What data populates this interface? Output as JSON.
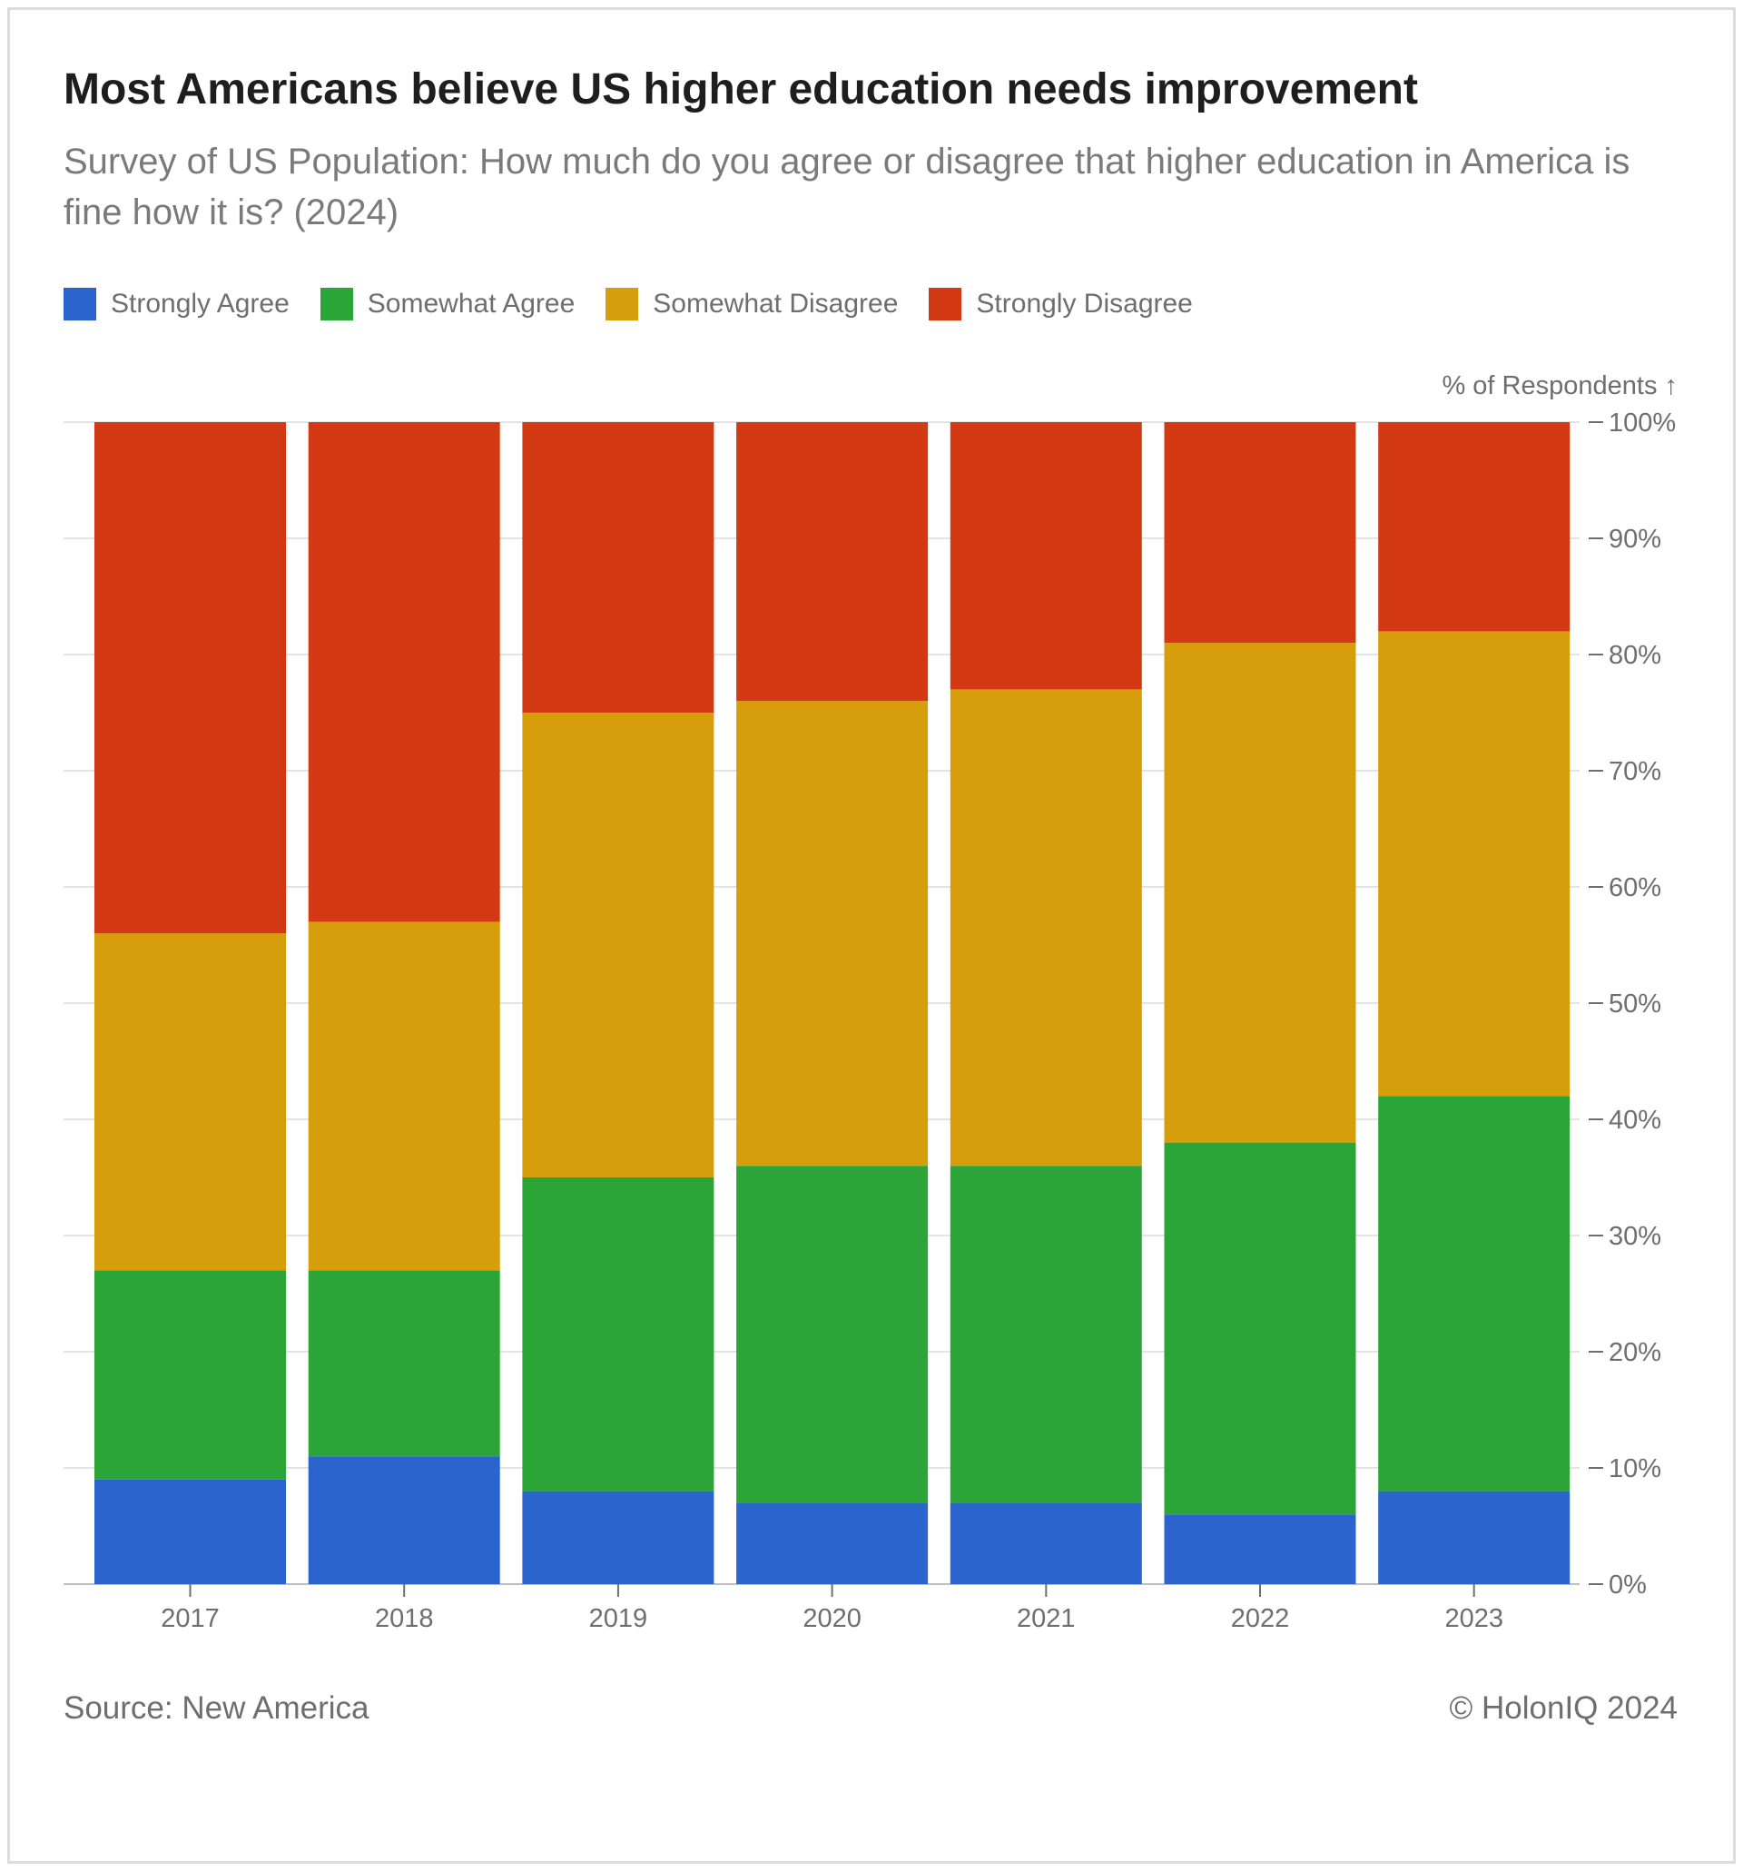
{
  "title": "Most Americans believe US higher education needs improvement",
  "subtitle": "Survey of US Population: How much do you agree or disagree that higher education in America is fine how it is? (2024)",
  "footer": {
    "source": "Source: New America",
    "copyright": "© HolonIQ 2024"
  },
  "chart_data": {
    "type": "bar",
    "stacked": true,
    "categories": [
      "2017",
      "2018",
      "2019",
      "2020",
      "2021",
      "2022",
      "2023"
    ],
    "series": [
      {
        "name": "Strongly Agree",
        "color": "#2a64cc",
        "values": [
          9,
          11,
          8,
          7,
          7,
          6,
          8
        ]
      },
      {
        "name": "Somewhat Agree",
        "color": "#2ba537",
        "values": [
          18,
          16,
          27,
          29,
          29,
          32,
          34
        ]
      },
      {
        "name": "Somewhat Disagree",
        "color": "#d79e0b",
        "values": [
          29,
          30,
          40,
          40,
          41,
          43,
          40
        ]
      },
      {
        "name": "Strongly Disagree",
        "color": "#d33a13",
        "values": [
          44,
          43,
          25,
          24,
          23,
          19,
          18
        ]
      }
    ],
    "ylabel": "% of Respondents ↑",
    "ylim": [
      0,
      100
    ],
    "yticks": [
      "0%",
      "10%",
      "20%",
      "30%",
      "40%",
      "50%",
      "60%",
      "70%",
      "80%",
      "90%",
      "100%"
    ],
    "grid": true,
    "legend": "top-left",
    "y_axis_side": "right"
  }
}
